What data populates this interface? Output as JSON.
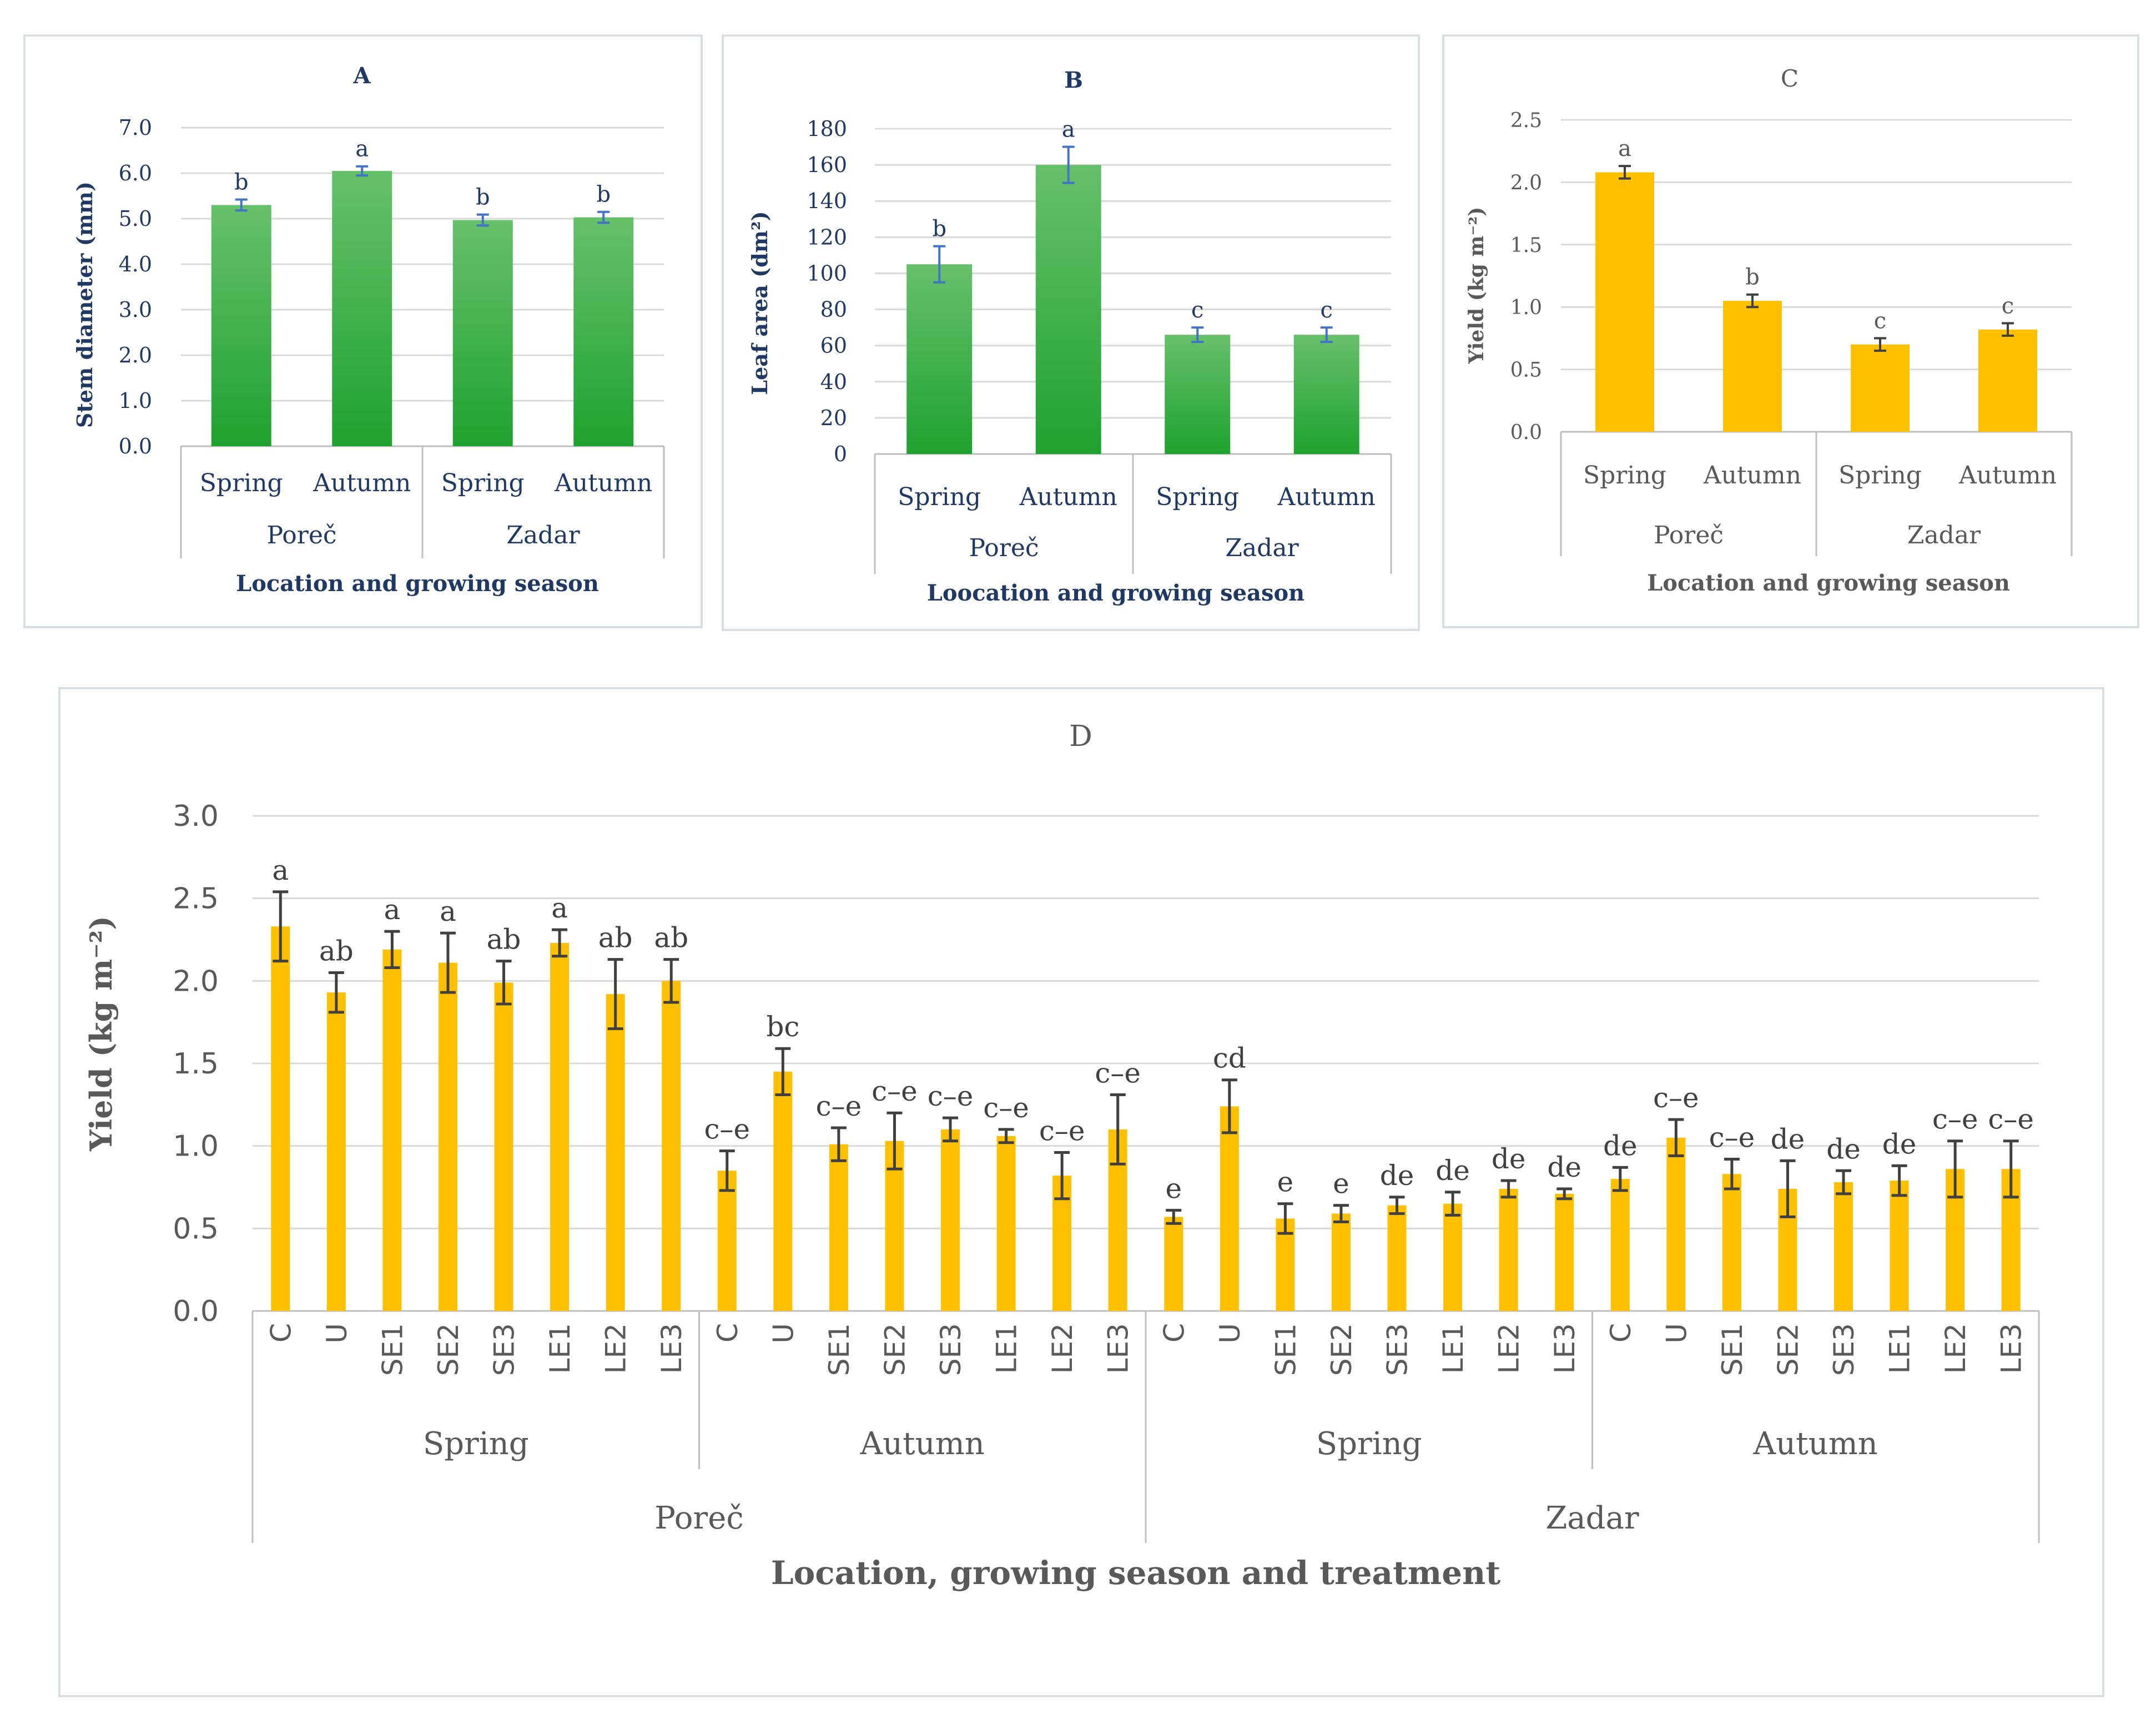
{
  "panels": {
    "A": {
      "title": "A",
      "ylabel": "Stem diameter (mm)",
      "xlabel": "Location and growing season",
      "yticks": [
        "0.0",
        "1.0",
        "2.0",
        "3.0",
        "4.0",
        "5.0",
        "6.0",
        "7.0"
      ],
      "ymax": 7.0,
      "seasons": [
        "Spring",
        "Autumn",
        "Spring",
        "Autumn"
      ],
      "locations": [
        "Poreč",
        "Zadar"
      ],
      "values": [
        5.3,
        6.05,
        4.97,
        5.03
      ],
      "errors": [
        0.12,
        0.1,
        0.12,
        0.12
      ],
      "letters": [
        "b",
        "a",
        "b",
        "b"
      ],
      "color": "#3bb54a"
    },
    "B": {
      "title": "B",
      "ylabel": "Leaf area (dm²)",
      "xlabel": "Loocation and growing season",
      "yticks": [
        "0",
        "20",
        "40",
        "60",
        "80",
        "100",
        "120",
        "140",
        "160",
        "180"
      ],
      "ymax": 180,
      "seasons": [
        "Spring",
        "Autumn",
        "Spring",
        "Autumn"
      ],
      "locations": [
        "Poreč",
        "Zadar"
      ],
      "values": [
        105,
        160,
        66,
        66
      ],
      "errors": [
        10,
        10,
        4,
        4
      ],
      "letters": [
        "b",
        "a",
        "c",
        "c"
      ],
      "color": "#3bb54a"
    },
    "C": {
      "title": "C",
      "ylabel": "Yield (kg m⁻²)",
      "xlabel": "Location and growing season",
      "yticks": [
        "0.0",
        "0.5",
        "1.0",
        "1.5",
        "2.0",
        "2.5"
      ],
      "ymax": 2.5,
      "seasons": [
        "Spring",
        "Autumn",
        "Spring",
        "Autumn"
      ],
      "locations": [
        "Poreč",
        "Zadar"
      ],
      "values": [
        2.08,
        1.05,
        0.7,
        0.82
      ],
      "errors": [
        0.05,
        0.05,
        0.05,
        0.05
      ],
      "letters": [
        "a",
        "b",
        "c",
        "c"
      ],
      "color": "#ffc000"
    }
  },
  "chart_data": {
    "type": "bar",
    "title": "D",
    "ylabel": "Yield (kg m⁻²)",
    "xlabel": "Location, growing season and treatment",
    "yticks": [
      "0.0",
      "0.5",
      "1.0",
      "1.5",
      "2.0",
      "2.5",
      "3.0"
    ],
    "ylim": [
      0,
      3.0
    ],
    "treatments": [
      "C",
      "U",
      "SE1",
      "SE2",
      "SE3",
      "LE1",
      "LE2",
      "LE3"
    ],
    "seasons": [
      "Spring",
      "Autumn",
      "Spring",
      "Autumn"
    ],
    "locations": [
      "Poreč",
      "Zadar"
    ],
    "values": [
      2.33,
      1.93,
      2.19,
      2.11,
      1.99,
      2.23,
      1.92,
      2.0,
      0.85,
      1.45,
      1.01,
      1.03,
      1.1,
      1.06,
      0.82,
      1.1,
      0.57,
      1.24,
      0.56,
      0.59,
      0.64,
      0.65,
      0.74,
      0.71,
      0.8,
      1.05,
      0.83,
      0.74,
      0.78,
      0.79,
      0.86,
      0.86
    ],
    "errors": [
      0.21,
      0.12,
      0.11,
      0.18,
      0.13,
      0.08,
      0.21,
      0.13,
      0.12,
      0.14,
      0.1,
      0.17,
      0.07,
      0.04,
      0.14,
      0.21,
      0.04,
      0.16,
      0.09,
      0.05,
      0.05,
      0.07,
      0.05,
      0.03,
      0.07,
      0.11,
      0.09,
      0.17,
      0.07,
      0.09,
      0.17,
      0.17
    ],
    "letters": [
      "a",
      "ab",
      "a",
      "a",
      "ab",
      "a",
      "ab",
      "ab",
      "c–e",
      "bc",
      "c–e",
      "c–e",
      "c–e",
      "c–e",
      "c–e",
      "c–e",
      "e",
      "cd",
      "e",
      "e",
      "de",
      "de",
      "de",
      "de",
      "de",
      "c–e",
      "c–e",
      "de",
      "de",
      "de",
      "c–e",
      "c–e"
    ],
    "color": "#ffc000",
    "grid": true
  }
}
